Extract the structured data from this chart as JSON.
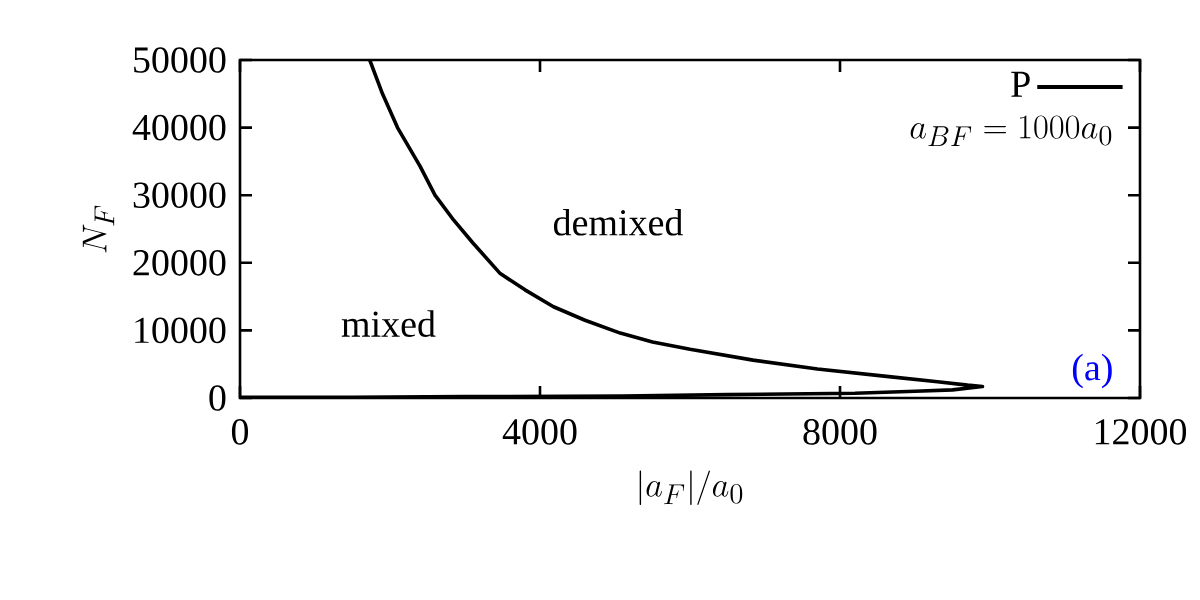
{
  "chart_data": {
    "type": "line",
    "xlabel": "|a_F|/a_0",
    "ylabel": "N_F",
    "xlim": [
      0,
      12000
    ],
    "ylim": [
      0,
      50000
    ],
    "xticks": [
      0,
      4000,
      8000,
      12000
    ],
    "yticks": [
      0,
      10000,
      20000,
      30000,
      40000,
      50000
    ],
    "series": [
      {
        "name": "P",
        "color": "#000000",
        "x": [
          1730,
          1900,
          2100,
          2400,
          2600,
          2850,
          3100,
          3470,
          3800,
          4180,
          4600,
          5070,
          5500,
          6000,
          6840,
          7700,
          8620,
          9300,
          9700,
          9900,
          9500,
          9000,
          8200,
          6500,
          5100,
          3000,
          1500,
          0
        ],
        "values": [
          50000,
          45000,
          40000,
          34300,
          30000,
          26300,
          23000,
          18400,
          16000,
          13500,
          11500,
          9600,
          8300,
          7200,
          5600,
          4300,
          3200,
          2400,
          1900,
          1700,
          1200,
          1000,
          700,
          500,
          300,
          200,
          100,
          100
        ]
      }
    ],
    "legend": "top right",
    "grid": false,
    "marker": "none",
    "line_style": "solid",
    "annotations": [
      "a_{BF} = 1000a_0",
      "demixed",
      "mixed",
      "(a)"
    ]
  }
}
